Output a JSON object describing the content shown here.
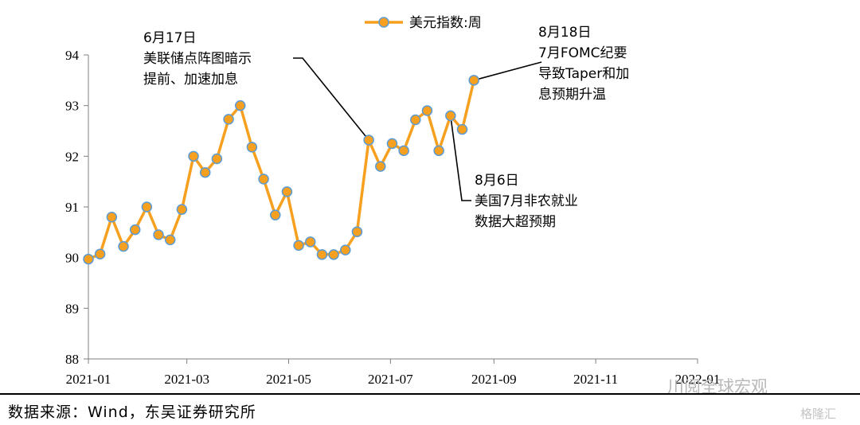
{
  "chart_data": {
    "type": "line",
    "x": [
      "2021-01-01",
      "2021-01-08",
      "2021-01-15",
      "2021-01-22",
      "2021-01-29",
      "2021-02-05",
      "2021-02-12",
      "2021-02-19",
      "2021-02-26",
      "2021-03-05",
      "2021-03-12",
      "2021-03-19",
      "2021-03-26",
      "2021-04-02",
      "2021-04-09",
      "2021-04-16",
      "2021-04-23",
      "2021-04-30",
      "2021-05-07",
      "2021-05-14",
      "2021-05-21",
      "2021-05-28",
      "2021-06-04",
      "2021-06-11",
      "2021-06-18",
      "2021-06-25",
      "2021-07-02",
      "2021-07-09",
      "2021-07-16",
      "2021-07-23",
      "2021-07-30",
      "2021-08-06",
      "2021-08-13",
      "2021-08-20"
    ],
    "series": [
      {
        "name": "美元指数:周",
        "values": [
          89.97,
          90.07,
          90.8,
          90.22,
          90.55,
          91.0,
          90.45,
          90.35,
          90.95,
          92.0,
          91.68,
          91.95,
          92.73,
          93.0,
          92.18,
          91.55,
          90.84,
          91.3,
          90.24,
          90.31,
          90.06,
          90.06,
          90.15,
          90.51,
          92.32,
          91.8,
          92.25,
          92.11,
          92.72,
          92.9,
          92.11,
          92.8,
          92.53,
          93.5
        ]
      }
    ],
    "x_ticks": [
      "2021-01",
      "2021-03",
      "2021-05",
      "2021-07",
      "2021-09",
      "2021-11",
      "2022-01"
    ],
    "y_ticks": [
      "88",
      "89",
      "90",
      "91",
      "92",
      "93",
      "94"
    ],
    "ylim": [
      88,
      94
    ],
    "xlim": [
      "2021-01-01",
      "2022-01-01"
    ],
    "grid": false,
    "legend": "top-center",
    "colors": {
      "line": "#F7A01F",
      "marker_fill": "#F7A01F",
      "marker_edge": "#5B9BD5"
    },
    "annotations": [
      {
        "lines": [
          "6月17日",
          "美联储点阵图暗示",
          "提前、加速加息"
        ],
        "target_date": "2021-06-18"
      },
      {
        "lines": [
          "8月18日",
          "7月FOMC纪要",
          "导致Taper和加",
          "息预期升温"
        ],
        "target_date": "2021-08-20"
      },
      {
        "lines": [
          "8月6日",
          "美国7月非农就业",
          "数据大超预期"
        ],
        "target_date": "2021-08-06"
      }
    ]
  },
  "source": "数据来源：Wind，东吴证券研究所",
  "watermark": {
    "text1": "川阅全球宏观",
    "text2": "格隆汇"
  }
}
